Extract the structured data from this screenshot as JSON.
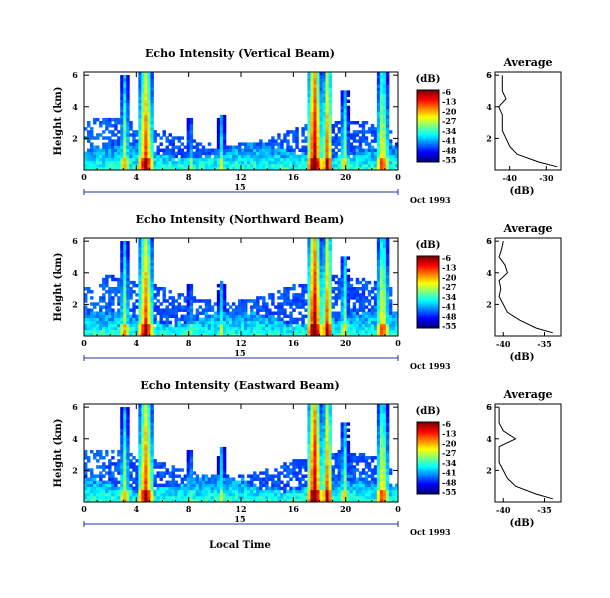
{
  "chart_data": {
    "type": "heatmap",
    "shared_xlabel": "Local Time",
    "date_label": "Oct 1993",
    "day_label": "15",
    "x_ticks": [
      "0",
      "4",
      "8",
      "12",
      "16",
      "20",
      "0"
    ],
    "x_range_hours": [
      0,
      24
    ],
    "y_ticks": [
      "2",
      "4",
      "6"
    ],
    "ylim_km": [
      0,
      6.2
    ],
    "ylabel": "Height (km)",
    "colorbar": {
      "unit": "(dB)",
      "ticks": [
        "-6",
        "-13",
        "-20",
        "-27",
        "-34",
        "-41",
        "-48",
        "-55"
      ],
      "range_db": [
        -55,
        -6
      ]
    },
    "profile_title": "Average",
    "profile_xlabel": "(dB)",
    "panels": [
      {
        "title": "Echo Intensity (Vertical Beam)",
        "profile_ticks": [
          "-40",
          "-30"
        ],
        "profile_xlim": [
          -44,
          -26
        ],
        "profile": {
          "height_km": [
            0.2,
            0.5,
            1.0,
            1.5,
            2.0,
            2.5,
            3.0,
            3.5,
            4.0,
            4.5,
            5.0,
            5.5,
            6.0
          ],
          "mean_db": [
            -27,
            -32,
            -38,
            -40,
            -41,
            -42,
            -42,
            -42,
            -43,
            -41,
            -42,
            -42,
            -42
          ]
        }
      },
      {
        "title": "Echo Intensity (Northward Beam)",
        "profile_ticks": [
          "-40",
          "-35"
        ],
        "profile_xlim": [
          -41,
          -33
        ],
        "profile": {
          "height_km": [
            0.2,
            0.5,
            1.0,
            1.5,
            2.0,
            2.5,
            3.0,
            3.5,
            4.0,
            4.5,
            5.0,
            5.5,
            6.0
          ],
          "mean_db": [
            -34,
            -36,
            -38,
            -39.5,
            -40,
            -40.5,
            -40.3,
            -40.5,
            -39.5,
            -39.8,
            -40.5,
            -40.2,
            -40
          ]
        }
      },
      {
        "title": "Echo Intensity (Eastward Beam)",
        "profile_ticks": [
          "-40",
          "-35"
        ],
        "profile_xlim": [
          -41,
          -33
        ],
        "profile": {
          "height_km": [
            0.2,
            0.5,
            1.0,
            1.5,
            2.0,
            2.5,
            3.0,
            3.5,
            4.0,
            4.5,
            5.0,
            5.5,
            6.0
          ],
          "mean_db": [
            -34,
            -36,
            -38.5,
            -39.5,
            -40,
            -40.5,
            -40.5,
            -40.5,
            -38.5,
            -40,
            -40.5,
            -40.5,
            -40.5
          ]
        }
      }
    ]
  }
}
